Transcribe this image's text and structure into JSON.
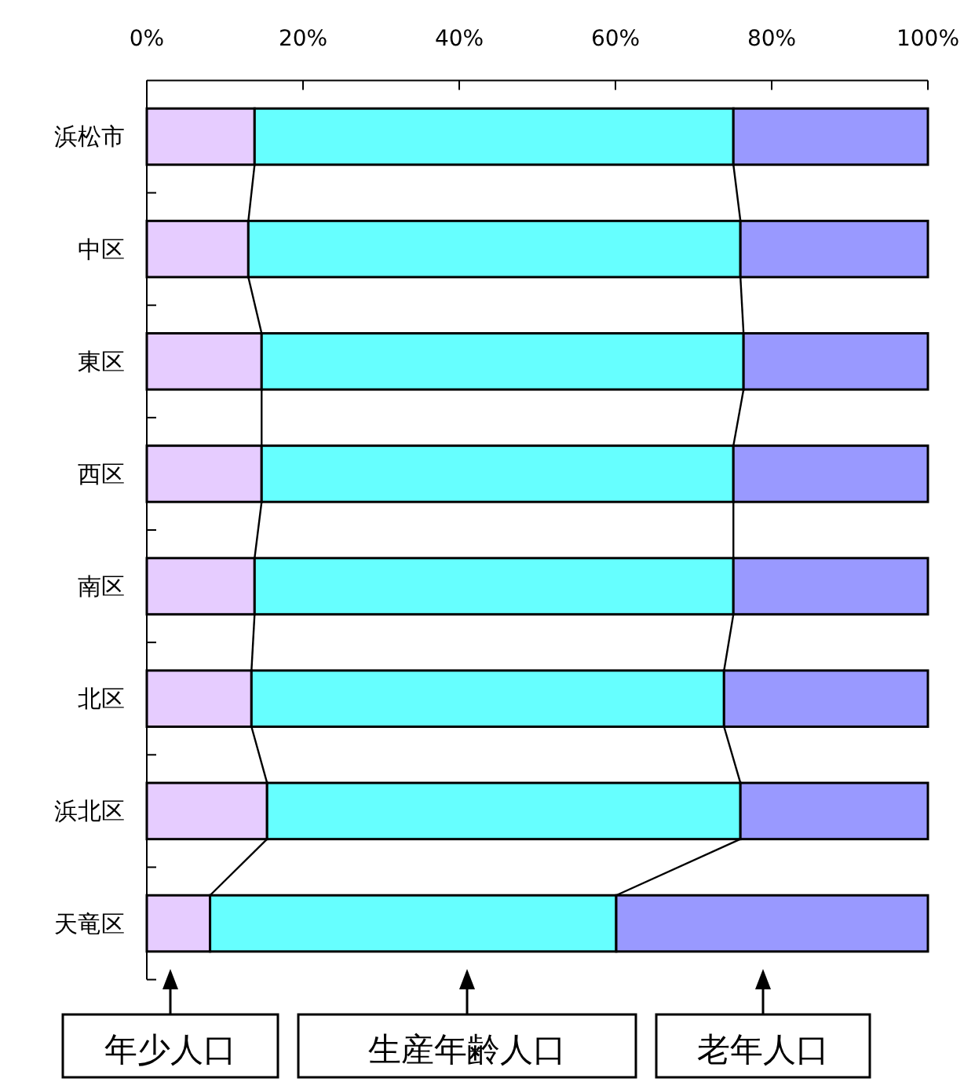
{
  "chart_data": {
    "type": "bar",
    "orientation": "horizontal",
    "stacked": true,
    "categories": [
      "浜松市",
      "中区",
      "東区",
      "西区",
      "南区",
      "北区",
      "浜北区",
      "天竜区"
    ],
    "series": [
      {
        "name": "年少人口",
        "color": "#e6ccff",
        "values": [
          13.8,
          13.0,
          14.7,
          14.7,
          13.8,
          13.4,
          15.4,
          8.1
        ]
      },
      {
        "name": "生産年齢人口",
        "color": "#66ffff",
        "values": [
          61.3,
          63.0,
          61.7,
          60.4,
          61.3,
          60.5,
          60.6,
          52.0
        ]
      },
      {
        "name": "老年人口",
        "color": "#9999ff",
        "values": [
          24.9,
          24.0,
          23.6,
          24.9,
          24.9,
          26.1,
          24.0,
          39.9
        ]
      }
    ],
    "xlim": [
      0,
      100
    ],
    "xticks": [
      {
        "value": 0,
        "label": "0%"
      },
      {
        "value": 20,
        "label": "20%"
      },
      {
        "value": 40,
        "label": "40%"
      },
      {
        "value": 60,
        "label": "60%"
      },
      {
        "value": 80,
        "label": "80%"
      },
      {
        "value": 100,
        "label": "100%"
      }
    ],
    "grid": false,
    "legend": "bottom"
  }
}
